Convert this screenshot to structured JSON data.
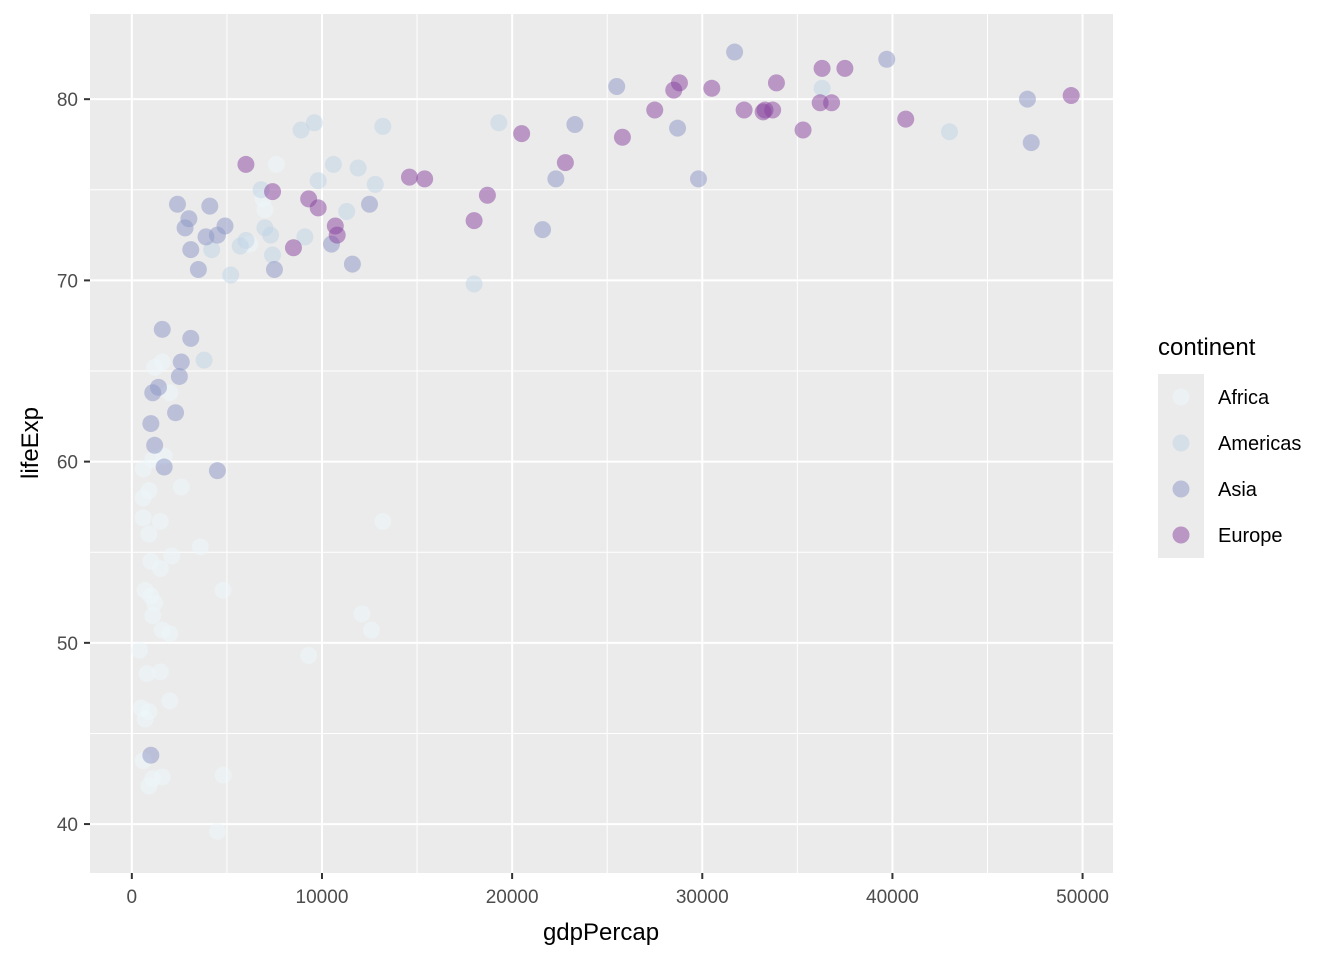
{
  "chart_data": {
    "type": "scatter",
    "xlabel": "gdpPercap",
    "ylabel": "lifeExp",
    "xlim": [
      -2200,
      51600
    ],
    "ylim": [
      37.3,
      84.7
    ],
    "x_ticks": [
      0,
      10000,
      20000,
      30000,
      40000,
      50000
    ],
    "x_tick_labels": [
      "0",
      "10000",
      "20000",
      "30000",
      "40000",
      "50000"
    ],
    "y_ticks": [
      40,
      50,
      60,
      70,
      80
    ],
    "y_tick_labels": [
      "40",
      "50",
      "60",
      "70",
      "80"
    ],
    "grid": true,
    "legend": {
      "title": "continent",
      "position": "right"
    },
    "point_alpha": 0.5,
    "series": [
      {
        "name": "Africa",
        "color": "#edf8fb",
        "points": [
          [
            500,
            46.4
          ],
          [
            700,
            45.8
          ],
          [
            900,
            46.2
          ],
          [
            600,
            43.5
          ],
          [
            800,
            48.3
          ],
          [
            900,
            42.1
          ],
          [
            1100,
            42.5
          ],
          [
            1600,
            42.6
          ],
          [
            400,
            49.6
          ],
          [
            700,
            52.9
          ],
          [
            1000,
            52.6
          ],
          [
            1200,
            52.2
          ],
          [
            1100,
            51.5
          ],
          [
            1600,
            50.7
          ],
          [
            2000,
            50.5
          ],
          [
            1500,
            48.4
          ],
          [
            2000,
            46.8
          ],
          [
            600,
            56.9
          ],
          [
            900,
            56.0
          ],
          [
            1500,
            56.7
          ],
          [
            1000,
            54.5
          ],
          [
            1500,
            54.1
          ],
          [
            2100,
            54.8
          ],
          [
            600,
            58.0
          ],
          [
            900,
            58.4
          ],
          [
            600,
            59.6
          ],
          [
            1100,
            60.1
          ],
          [
            1700,
            60.3
          ],
          [
            2000,
            63.8
          ],
          [
            1200,
            65.2
          ],
          [
            1600,
            65.5
          ],
          [
            2600,
            58.6
          ],
          [
            4500,
            39.6
          ],
          [
            4800,
            42.7
          ],
          [
            4800,
            52.9
          ],
          [
            3600,
            55.3
          ],
          [
            12100,
            51.6
          ],
          [
            12600,
            50.7
          ],
          [
            13200,
            56.7
          ],
          [
            9300,
            49.3
          ],
          [
            7000,
            73.9
          ],
          [
            7600,
            76.4
          ],
          [
            6200,
            72.0
          ],
          [
            6900,
            74.5
          ]
        ]
      },
      {
        "name": "Americas",
        "color": "#bfd3e6",
        "points": [
          [
            5700,
            71.9
          ],
          [
            6000,
            72.2
          ],
          [
            7300,
            72.5
          ],
          [
            7400,
            71.4
          ],
          [
            6800,
            75.0
          ],
          [
            7000,
            72.9
          ],
          [
            9100,
            72.4
          ],
          [
            8900,
            78.3
          ],
          [
            9600,
            78.7
          ],
          [
            9800,
            75.5
          ],
          [
            10600,
            76.4
          ],
          [
            11300,
            73.8
          ],
          [
            11900,
            76.2
          ],
          [
            12800,
            75.3
          ],
          [
            13200,
            78.5
          ],
          [
            5200,
            70.3
          ],
          [
            3800,
            65.6
          ],
          [
            4200,
            71.7
          ],
          [
            18000,
            69.8
          ],
          [
            19300,
            78.7
          ],
          [
            36300,
            80.6
          ],
          [
            43000,
            78.2
          ]
        ]
      },
      {
        "name": "Asia",
        "color": "#8c96c6",
        "points": [
          [
            1000,
            43.8
          ],
          [
            1100,
            63.8
          ],
          [
            1400,
            64.1
          ],
          [
            1000,
            62.1
          ],
          [
            1200,
            60.9
          ],
          [
            1700,
            59.7
          ],
          [
            1600,
            67.3
          ],
          [
            2300,
            62.7
          ],
          [
            2500,
            64.7
          ],
          [
            2600,
            65.5
          ],
          [
            3100,
            66.8
          ],
          [
            3500,
            70.6
          ],
          [
            2400,
            74.2
          ],
          [
            2800,
            72.9
          ],
          [
            3000,
            73.4
          ],
          [
            3100,
            71.7
          ],
          [
            3900,
            72.4
          ],
          [
            4100,
            74.1
          ],
          [
            4500,
            72.5
          ],
          [
            4900,
            73.0
          ],
          [
            4500,
            59.5
          ],
          [
            7500,
            70.6
          ],
          [
            10500,
            72.0
          ],
          [
            11600,
            70.9
          ],
          [
            12500,
            74.2
          ],
          [
            21600,
            72.8
          ],
          [
            22300,
            75.6
          ],
          [
            23300,
            78.6
          ],
          [
            25500,
            80.7
          ],
          [
            28700,
            78.4
          ],
          [
            29800,
            75.6
          ],
          [
            31700,
            82.6
          ],
          [
            39700,
            82.2
          ],
          [
            47100,
            80.0
          ],
          [
            47300,
            77.6
          ]
        ]
      },
      {
        "name": "Europe",
        "color": "#88419d",
        "points": [
          [
            6000,
            76.4
          ],
          [
            7400,
            74.9
          ],
          [
            8500,
            71.8
          ],
          [
            9300,
            74.5
          ],
          [
            9800,
            74.0
          ],
          [
            10700,
            73.0
          ],
          [
            10800,
            72.5
          ],
          [
            14600,
            75.7
          ],
          [
            15400,
            75.6
          ],
          [
            18000,
            73.3
          ],
          [
            18700,
            74.7
          ],
          [
            20500,
            78.1
          ],
          [
            22800,
            76.5
          ],
          [
            25800,
            77.9
          ],
          [
            27500,
            79.4
          ],
          [
            28500,
            80.5
          ],
          [
            28800,
            80.9
          ],
          [
            30500,
            80.6
          ],
          [
            32200,
            79.4
          ],
          [
            33200,
            79.3
          ],
          [
            33300,
            79.4
          ],
          [
            33700,
            79.4
          ],
          [
            33900,
            80.9
          ],
          [
            35300,
            78.3
          ],
          [
            36200,
            79.8
          ],
          [
            36300,
            81.7
          ],
          [
            36800,
            79.8
          ],
          [
            37500,
            81.7
          ],
          [
            40700,
            78.9
          ],
          [
            49400,
            80.2
          ]
        ]
      }
    ]
  }
}
